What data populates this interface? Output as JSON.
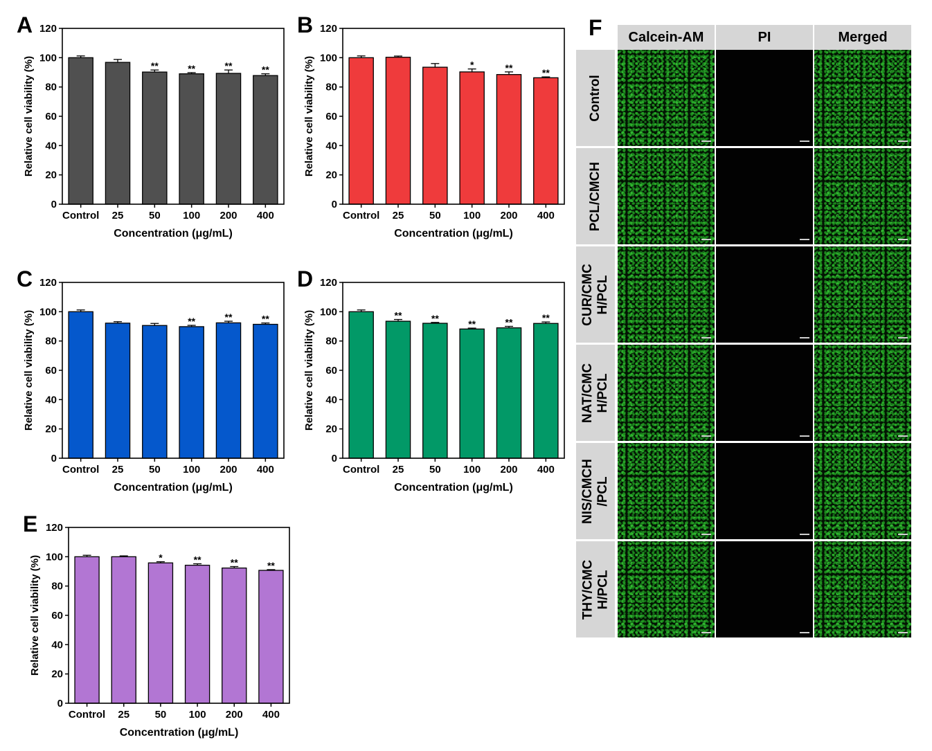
{
  "chart_data": [
    {
      "panel": "A",
      "type": "bar",
      "color": "#505050",
      "categories": [
        "Control",
        "25",
        "50",
        "100",
        "200",
        "400"
      ],
      "values": [
        100,
        96.8,
        90.2,
        89.0,
        89.3,
        87.8
      ],
      "errors": [
        1.2,
        2.0,
        1.4,
        0.8,
        2.3,
        1.2
      ],
      "significance": [
        "",
        "",
        "**",
        "**",
        "**",
        "**"
      ],
      "xlabel": "Concentration (μg/mL)",
      "ylabel": "Relative cell viability (%)",
      "ylim": [
        0,
        120
      ],
      "yticks": [
        0,
        20,
        40,
        60,
        80,
        100,
        120
      ]
    },
    {
      "panel": "B",
      "type": "bar",
      "color": "#ef3b3c",
      "categories": [
        "Control",
        "25",
        "50",
        "100",
        "200",
        "400"
      ],
      "values": [
        100,
        100.3,
        93.5,
        90.3,
        88.5,
        86.3
      ],
      "errors": [
        1.2,
        0.8,
        2.5,
        2.0,
        1.8,
        0.6
      ],
      "significance": [
        "",
        "",
        "",
        "*",
        "**",
        "**"
      ],
      "xlabel": "Concentration (μg/mL)",
      "ylabel": "Relative cell viability (%)",
      "ylim": [
        0,
        120
      ],
      "yticks": [
        0,
        20,
        40,
        60,
        80,
        100,
        120
      ]
    },
    {
      "panel": "C",
      "type": "bar",
      "color": "#0558cc",
      "categories": [
        "Control",
        "25",
        "50",
        "100",
        "200",
        "400"
      ],
      "values": [
        100,
        92.2,
        90.6,
        89.8,
        92.4,
        91.4
      ],
      "errors": [
        1.2,
        1.0,
        1.4,
        0.9,
        1.1,
        0.9
      ],
      "significance": [
        "",
        "",
        "",
        "**",
        "**",
        "**"
      ],
      "xlabel": "Concentration (μg/mL)",
      "ylabel": "Relative cell viability (%)",
      "ylim": [
        0,
        120
      ],
      "yticks": [
        0,
        20,
        40,
        60,
        80,
        100,
        120
      ]
    },
    {
      "panel": "D",
      "type": "bar",
      "color": "#029967",
      "categories": [
        "Control",
        "25",
        "50",
        "100",
        "200",
        "400"
      ],
      "values": [
        100,
        93.5,
        92.1,
        88.2,
        89.0,
        92.0
      ],
      "errors": [
        1.2,
        1.2,
        0.6,
        0.6,
        1.0,
        1.0
      ],
      "significance": [
        "",
        "**",
        "**",
        "**",
        "**",
        "**"
      ],
      "xlabel": "Concentration (μg/mL)",
      "ylabel": "Relative cell viability (%)",
      "ylim": [
        0,
        120
      ],
      "yticks": [
        0,
        20,
        40,
        60,
        80,
        100,
        120
      ]
    },
    {
      "panel": "E",
      "type": "bar",
      "color": "#b276d3",
      "categories": [
        "Control",
        "25",
        "50",
        "100",
        "200",
        "400"
      ],
      "values": [
        100,
        100,
        95.8,
        94.2,
        92.3,
        90.7
      ],
      "errors": [
        1.0,
        0.6,
        0.8,
        1.0,
        1.0,
        0.5
      ],
      "significance": [
        "",
        "",
        "*",
        "**",
        "**",
        "**"
      ],
      "xlabel": "Concentration (μg/mL)",
      "ylabel": "Relative cell viability (%)",
      "ylim": [
        0,
        120
      ],
      "yticks": [
        0,
        20,
        40,
        60,
        80,
        100,
        120
      ]
    }
  ],
  "image_panel": {
    "letter": "F",
    "columns": [
      "Calcein-AM",
      "PI",
      "Merged"
    ],
    "rows": [
      "Control",
      "PCL/CMCH",
      "CUR/CMC\nH/PCL",
      "NAT/CMC\nH/PCL",
      "NIS/CMCH\n/PCL",
      "THY/CMC\nH/PCL"
    ],
    "column_fluorescence": [
      "green",
      "dark",
      "green"
    ]
  }
}
